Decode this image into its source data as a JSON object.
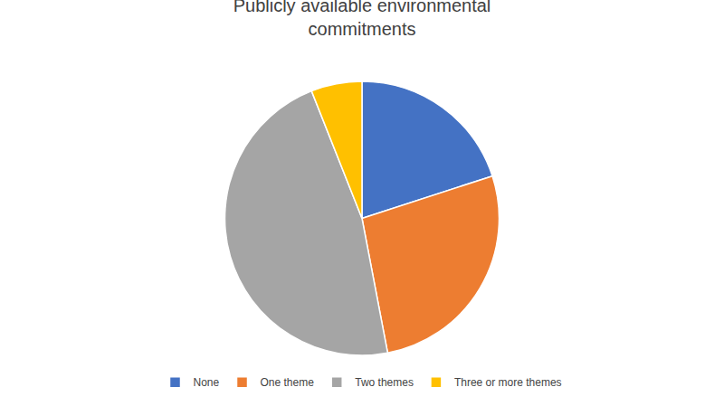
{
  "chart_data": {
    "type": "pie",
    "title": "Publicly available environmental\ncommitments",
    "categories": [
      "None",
      "One theme",
      "Two themes",
      "Three or more themes"
    ],
    "values": [
      20,
      27,
      47,
      6
    ],
    "colors": [
      "#4472C4",
      "#ED7D31",
      "#A5A5A5",
      "#FFC000"
    ],
    "legend": "bottom"
  }
}
